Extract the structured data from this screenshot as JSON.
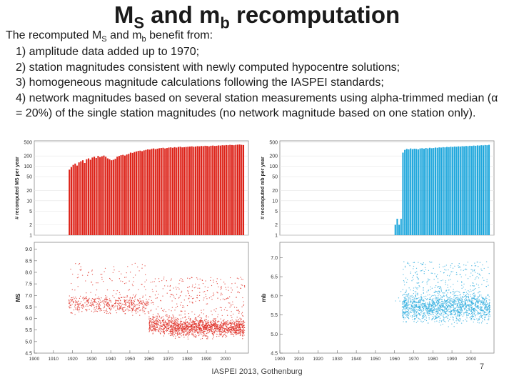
{
  "slide": {
    "title_a": "M",
    "title_a_sub": "S",
    "title_b": " and m",
    "title_b_sub": "b",
    "title_c": " recomputation",
    "intro_a": "The recomputed M",
    "intro_a_sub": "S",
    "intro_b": " and m",
    "intro_b_sub": "b",
    "intro_c": " benefit from:",
    "points": [
      "1) amplitude data added up to 1970;",
      "2) station magnitudes consistent with newly computed hypocentre solutions;",
      "3) homogeneous magnitude calculations following the IASPEI standards;",
      "4) network magnitudes based on several station measurements using alpha-trimmed median (α = 20%) of the single station magnitudes (no network magnitude based on one station only)."
    ],
    "footer": "IASPEI 2013, Gothenburg",
    "page_number": "7"
  },
  "chart_data": [
    {
      "type": "bar",
      "id": "ms-count",
      "title": "",
      "ylabel": "# recomputed MS per year",
      "yscale": "log",
      "yticks": [
        "500",
        "200",
        "100",
        "50",
        "20",
        "10",
        "5",
        "2",
        "1"
      ],
      "ytick_values": [
        500,
        200,
        100,
        50,
        20,
        10,
        5,
        2,
        1
      ],
      "xlim": [
        1900,
        2012
      ],
      "color": "#dd2218",
      "series": [
        {
          "name": "MS",
          "x_start": 1918,
          "x_end": 2009,
          "values": [
            80,
            95,
            110,
            120,
            105,
            130,
            140,
            150,
            125,
            160,
            170,
            155,
            180,
            190,
            175,
            200,
            185,
            195,
            205,
            190,
            170,
            160,
            150,
            155,
            165,
            190,
            200,
            210,
            215,
            205,
            220,
            230,
            250,
            245,
            260,
            270,
            280,
            285,
            275,
            290,
            300,
            310,
            305,
            320,
            330,
            315,
            325,
            335,
            340,
            345,
            330,
            340,
            350,
            355,
            345,
            360,
            350,
            365,
            370,
            355,
            360,
            365,
            370,
            375,
            380,
            370,
            375,
            385,
            380,
            390,
            385,
            395,
            390,
            380,
            395,
            400,
            390,
            395,
            405,
            400,
            410,
            405,
            415,
            410,
            420,
            415,
            410,
            420,
            425,
            430,
            420,
            415
          ]
        }
      ]
    },
    {
      "type": "bar",
      "id": "mb-count",
      "title": "",
      "ylabel": "# recomputed mb per year",
      "yscale": "log",
      "yticks": [
        "500",
        "200",
        "100",
        "50",
        "20",
        "10",
        "5",
        "2",
        "1"
      ],
      "ytick_values": [
        500,
        200,
        100,
        50,
        20,
        10,
        5,
        2,
        1
      ],
      "xlim": [
        1900,
        2012
      ],
      "color": "#1fa7dc",
      "series": [
        {
          "name": "mb",
          "x_start": 1960,
          "x_end": 2009,
          "values": [
            2,
            3,
            2,
            3,
            250,
            300,
            320,
            310,
            330,
            315,
            325,
            320,
            310,
            330,
            335,
            325,
            340,
            330,
            345,
            335,
            340,
            350,
            345,
            355,
            350,
            360,
            355,
            365,
            360,
            370,
            365,
            375,
            370,
            380,
            375,
            385,
            380,
            390,
            385,
            395,
            390,
            400,
            395,
            405,
            400,
            410,
            405,
            415,
            410,
            420
          ]
        }
      ]
    },
    {
      "type": "scatter",
      "id": "ms-values",
      "ylabel": "MS",
      "xlim": [
        1900,
        2012
      ],
      "ylim": [
        4.5,
        9.3
      ],
      "yticks": [
        "9.0",
        "8.5",
        "8.0",
        "7.5",
        "7.0",
        "6.5",
        "6.0",
        "5.5",
        "5.0",
        "4.5"
      ],
      "ytick_values": [
        9.0,
        8.5,
        8.0,
        7.5,
        7.0,
        6.5,
        6.0,
        5.5,
        5.0,
        4.5
      ],
      "xticks": [
        "1900",
        "1910",
        "1920",
        "1930",
        "1940",
        "1950",
        "1960",
        "1970",
        "1980",
        "1990",
        "2000"
      ],
      "xtick_values": [
        1900,
        1910,
        1920,
        1930,
        1940,
        1950,
        1960,
        1970,
        1980,
        1990,
        2000
      ],
      "color": "#dd2218",
      "regimes": [
        {
          "from": 1918,
          "to": 1960,
          "min": 5.9,
          "center": 6.6,
          "max": 8.4,
          "density": 14
        },
        {
          "from": 1960,
          "to": 1971,
          "min": 5.0,
          "center": 5.7,
          "max": 7.8,
          "density": 30
        },
        {
          "from": 1971,
          "to": 2010,
          "min": 4.9,
          "center": 5.6,
          "max": 7.8,
          "density": 40
        }
      ]
    },
    {
      "type": "scatter",
      "id": "mb-values",
      "ylabel": "mb",
      "xlim": [
        1900,
        2012
      ],
      "ylim": [
        4.5,
        7.4
      ],
      "yticks": [
        "7.0",
        "6.5",
        "6.0",
        "5.5",
        "5.0",
        "4.5"
      ],
      "ytick_values": [
        7.0,
        6.5,
        6.0,
        5.5,
        5.0,
        4.5
      ],
      "xticks": [
        "1900",
        "1910",
        "1920",
        "1930",
        "1940",
        "1950",
        "1960",
        "1970",
        "1980",
        "1990",
        "2000"
      ],
      "xtick_values": [
        1900,
        1910,
        1920,
        1930,
        1940,
        1950,
        1960,
        1970,
        1980,
        1990,
        2000
      ],
      "color": "#1fa7dc",
      "regimes": [
        {
          "from": 1960,
          "to": 1964,
          "min": 5.5,
          "center": 5.8,
          "max": 6.2,
          "density": 1
        },
        {
          "from": 1964,
          "to": 2010,
          "min": 5.0,
          "center": 5.7,
          "max": 6.9,
          "density": 40
        }
      ]
    }
  ]
}
